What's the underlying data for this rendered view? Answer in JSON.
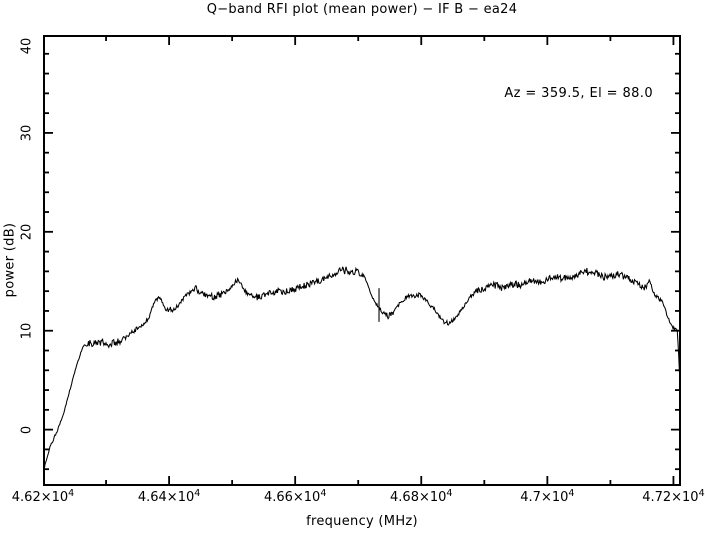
{
  "title": "Q−band RFI plot (mean power) − IF B − ea24",
  "annotation": "Az = 359.5, El = 88.0",
  "colors": {
    "background": "#ffffff",
    "frame": "#000000",
    "line": "#000000",
    "text": "#000000"
  },
  "axes": {
    "x": {
      "label": "frequency (MHz)",
      "major_ticks": [
        46200,
        46400,
        46600,
        46800,
        47000,
        47200
      ],
      "major_tick_labels": [
        {
          "base": "4.62×10",
          "sup": "4"
        },
        {
          "base": "4.64×10",
          "sup": "4"
        },
        {
          "base": "4.66×10",
          "sup": "4"
        },
        {
          "base": "4.68×10",
          "sup": "4"
        },
        {
          "base": "4.7×10",
          "sup": "4"
        },
        {
          "base": "4.72×10",
          "sup": "4"
        }
      ],
      "minor_ticks": [
        46300,
        46500,
        46700,
        46900,
        47100
      ]
    },
    "y": {
      "label": "power (dB)",
      "major_ticks": [
        0,
        10,
        20,
        30,
        40
      ],
      "major_tick_labels": [
        "0",
        "10",
        "20",
        "30",
        "40"
      ],
      "minor_tick_step": 2
    }
  },
  "chart_data": {
    "type": "line",
    "title": "Q−band RFI plot (mean power) − IF B − ea24",
    "xlabel": "frequency (MHz)",
    "ylabel": "power (dB)",
    "xlim": [
      46200,
      47212
    ],
    "ylim": [
      -5.7,
      39.9
    ],
    "grid": false,
    "annotations": [
      {
        "text": "Az = 359.5, El = 88.0",
        "position": "upper-right"
      }
    ],
    "noise_amplitude_db": 0.45,
    "spike": {
      "x": 46733,
      "y_from": 10.9,
      "y_to": 14.3
    },
    "series": [
      {
        "name": "mean power",
        "x": [
          46200,
          46211,
          46224,
          46232,
          46240,
          46246,
          46252,
          46259,
          46265,
          46275,
          46284,
          46294,
          46303,
          46313,
          46322,
          46332,
          46341,
          46351,
          46360,
          46367,
          46373,
          46379,
          46386,
          46395,
          46405,
          46414,
          46424,
          46433,
          46443,
          46452,
          46462,
          46471,
          46481,
          46490,
          46498,
          46506,
          46513,
          46522,
          46532,
          46541,
          46551,
          46560,
          46570,
          46579,
          46589,
          46598,
          46608,
          46617,
          46627,
          46637,
          46646,
          46655,
          46665,
          46675,
          46684,
          46694,
          46700,
          46710,
          46716,
          46722,
          46729,
          46735,
          46741,
          46748,
          46754,
          46760,
          46767,
          46775,
          46783,
          46790,
          46798,
          46806,
          46814,
          46822,
          46830,
          46838,
          46843,
          46849,
          46856,
          46863,
          46871,
          46879,
          46887,
          46895,
          46903,
          46911,
          46919,
          46927,
          46935,
          46943,
          46951,
          46959,
          46967,
          46975,
          46983,
          46990,
          46998,
          47006,
          47014,
          47022,
          47030,
          47038,
          47046,
          47054,
          47062,
          47070,
          47078,
          47086,
          47094,
          47102,
          47110,
          47117,
          47125,
          47133,
          47141,
          47149,
          47157,
          47162,
          47167,
          47171,
          47176,
          47181,
          47186,
          47190,
          47195,
          47200,
          47206,
          47208,
          47209,
          47211,
          47212
        ],
        "y": [
          -4.3,
          -1.8,
          0.1,
          1.5,
          3.4,
          4.8,
          6.2,
          7.6,
          8.6,
          8.8,
          8.7,
          8.9,
          8.7,
          8.8,
          8.9,
          9.4,
          9.9,
          10.3,
          10.8,
          11.1,
          12.3,
          13.2,
          13.3,
          12.1,
          12.2,
          12.5,
          13.4,
          13.9,
          14.2,
          13.7,
          13.5,
          13.4,
          13.6,
          13.9,
          14.4,
          15.0,
          14.8,
          13.9,
          13.5,
          13.4,
          13.6,
          13.8,
          14.0,
          13.9,
          14.0,
          14.2,
          14.4,
          14.6,
          14.8,
          15.0,
          15.2,
          15.6,
          15.9,
          16.1,
          16.1,
          16.0,
          15.9,
          15.5,
          14.5,
          13.4,
          12.7,
          12.2,
          11.7,
          11.5,
          11.7,
          12.2,
          12.9,
          13.3,
          13.6,
          13.7,
          13.5,
          13.2,
          12.6,
          12.1,
          11.3,
          10.7,
          10.6,
          11.0,
          11.4,
          12.1,
          12.8,
          13.5,
          14.0,
          14.2,
          14.3,
          14.5,
          14.6,
          14.4,
          14.4,
          14.8,
          14.7,
          14.6,
          14.9,
          15.1,
          14.9,
          14.8,
          15.1,
          15.4,
          15.6,
          15.3,
          15.2,
          15.4,
          15.6,
          15.8,
          16.0,
          15.9,
          15.8,
          15.5,
          15.4,
          15.6,
          15.7,
          15.6,
          15.6,
          15.1,
          14.9,
          14.5,
          14.4,
          15.3,
          14.0,
          13.6,
          13.3,
          13.1,
          12.4,
          11.5,
          10.8,
          10.3,
          10.1,
          8.0,
          6.5,
          4.0,
          1.8
        ]
      }
    ]
  }
}
